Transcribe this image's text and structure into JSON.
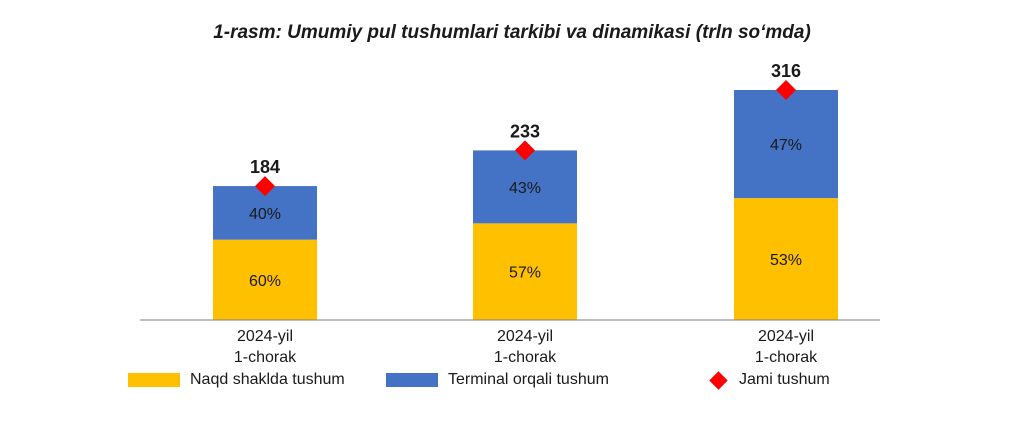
{
  "title": "1-rasm: Umumiy pul tushumlari tarkibi va dinamikasi (trln so‘mda)",
  "colors": {
    "cash": "#FFC000",
    "terminal": "#4472C4",
    "total_marker": "#FF0000",
    "axis": "#7f7f7f"
  },
  "legend": {
    "cash": "Naqd shaklda tushum",
    "terminal": "Terminal orqali tushum",
    "total": "Jami tushum"
  },
  "chart_data": {
    "type": "bar",
    "stacked": true,
    "categories": [
      [
        "2024-yil",
        "1-chorak"
      ],
      [
        "2024-yil",
        "1-chorak"
      ],
      [
        "2024-yil",
        "1-chorak"
      ]
    ],
    "totals": [
      184,
      233,
      316
    ],
    "series": [
      {
        "name": "Naqd shaklda tushum",
        "key": "cash",
        "share_percent": [
          60,
          57,
          53
        ],
        "labels": [
          "60%",
          "57%",
          "53%"
        ]
      },
      {
        "name": "Terminal orqali tushum",
        "key": "terminal",
        "share_percent": [
          40,
          43,
          47
        ],
        "labels": [
          "40%",
          "43%",
          "47%"
        ]
      }
    ],
    "markers": {
      "name": "Jami tushum",
      "values": [
        184,
        233,
        316
      ],
      "labels": [
        "184",
        "233",
        "316"
      ]
    },
    "ylim": [
      0,
      316
    ],
    "grid": false,
    "legend_position": "bottom"
  }
}
